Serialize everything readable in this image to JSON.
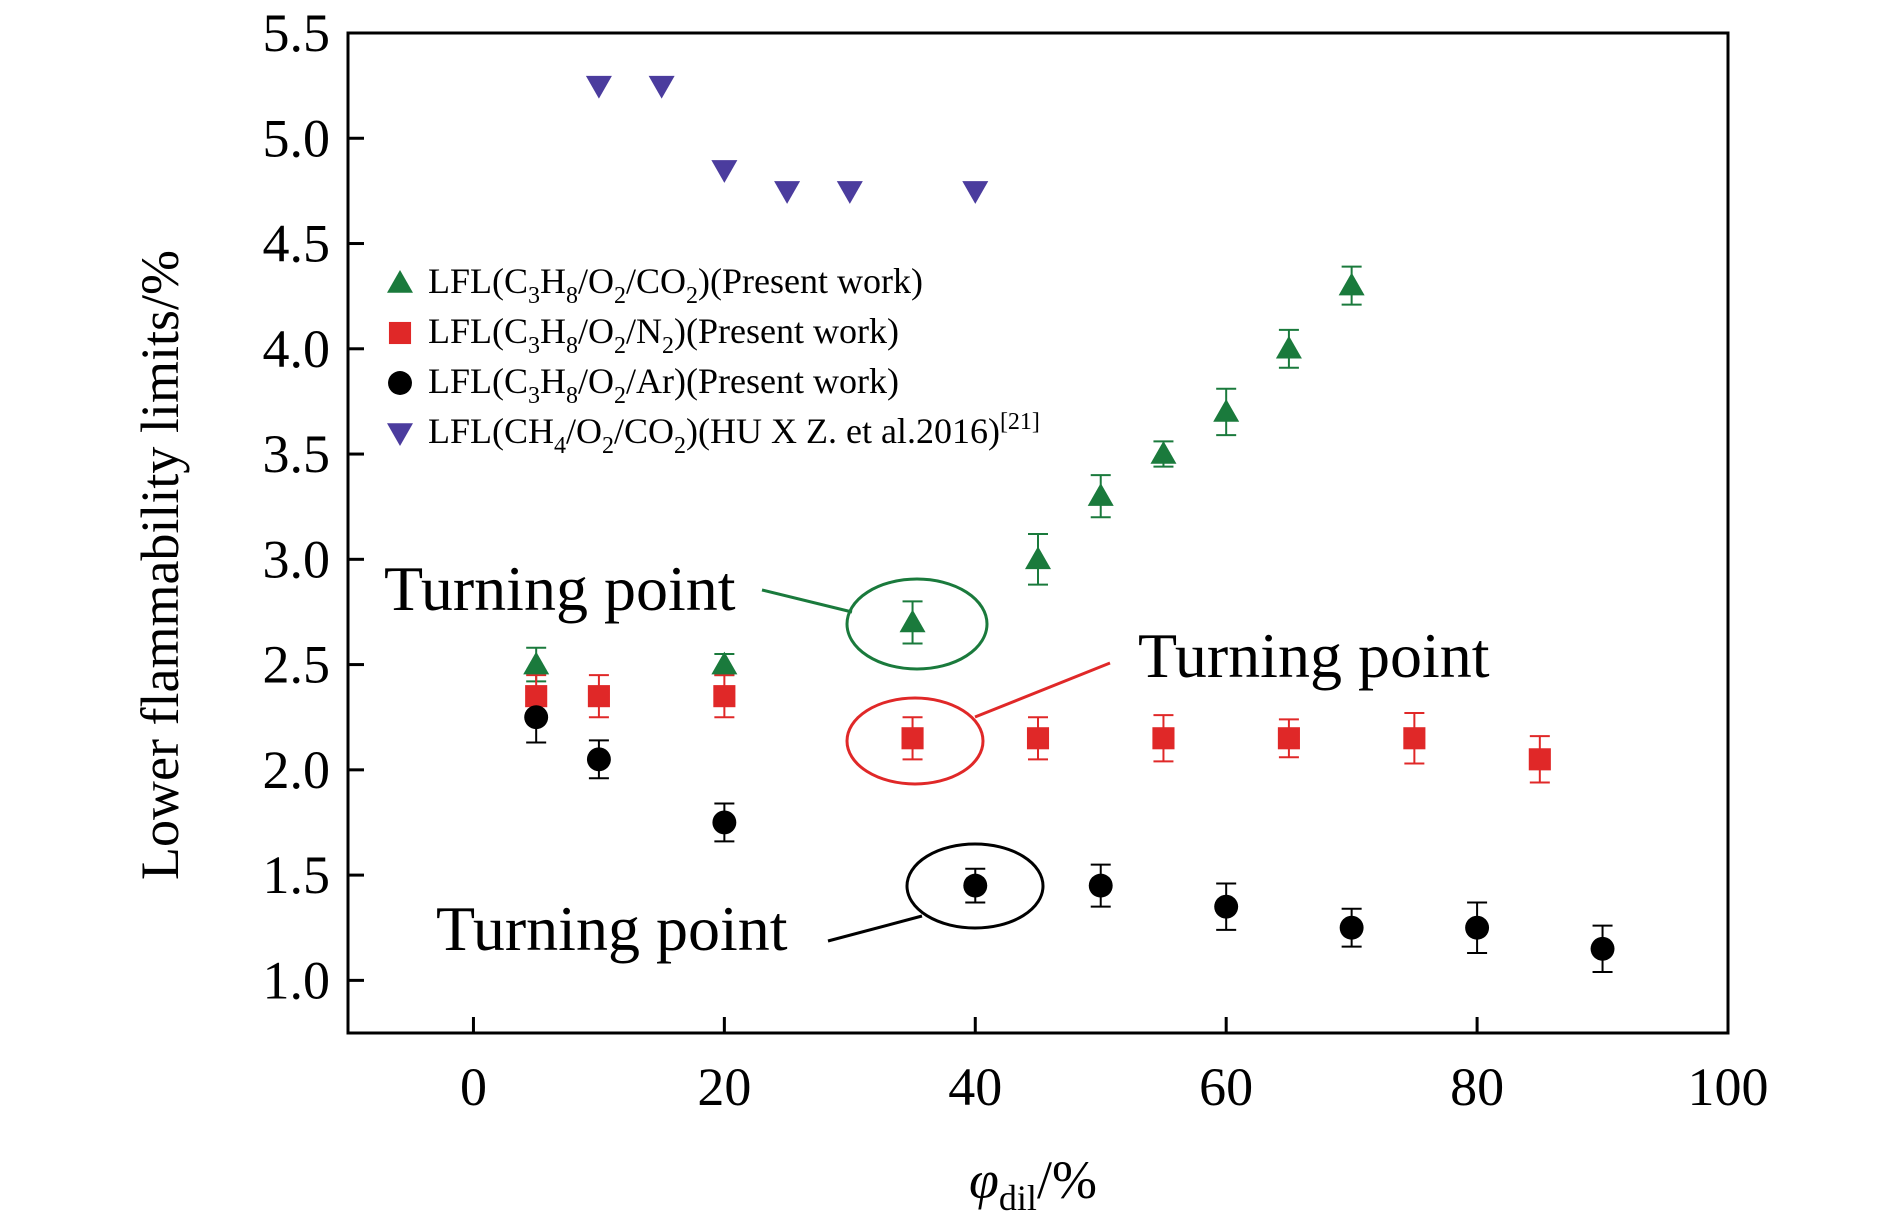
{
  "chart_data": {
    "type": "scatter",
    "xlabel": {
      "main": "φ",
      "sub": "dil",
      "tail": "/%"
    },
    "ylabel": "Lower flammability limits/%",
    "xlim": [
      -10,
      100
    ],
    "ylim": [
      0.75,
      5.5
    ],
    "xticks": [
      "0",
      "20",
      "40",
      "60",
      "80",
      "100"
    ],
    "yticks": [
      "1.0",
      "1.5",
      "2.0",
      "2.5",
      "3.0",
      "3.5",
      "4.0",
      "4.5",
      "5.0",
      "5.5"
    ],
    "legend_position": "upper-left",
    "series": [
      {
        "name": "LFL(C3H8/O2/CO2)(Present work)",
        "legend_parts": [
          {
            "t": "LFL(C"
          },
          {
            "t": "3",
            "s": "sub"
          },
          {
            "t": "H"
          },
          {
            "t": "8",
            "s": "sub"
          },
          {
            "t": "/O"
          },
          {
            "t": "2",
            "s": "sub"
          },
          {
            "t": "/CO"
          },
          {
            "t": "2",
            "s": "sub"
          },
          {
            "t": ")(Present work)"
          }
        ],
        "marker": "triangle-up",
        "color": "#1a7a3c",
        "x": [
          5,
          20,
          35,
          45,
          50,
          55,
          60,
          65,
          70
        ],
        "y": [
          2.5,
          2.5,
          2.7,
          3.0,
          3.3,
          3.5,
          3.7,
          4.0,
          4.3
        ],
        "err": [
          0.08,
          0.05,
          0.1,
          0.12,
          0.1,
          0.06,
          0.11,
          0.09,
          0.09
        ]
      },
      {
        "name": "LFL(C3H8/O2/N2)(Present work)",
        "legend_parts": [
          {
            "t": "LFL(C"
          },
          {
            "t": "3",
            "s": "sub"
          },
          {
            "t": "H"
          },
          {
            "t": "8",
            "s": "sub"
          },
          {
            "t": "/O"
          },
          {
            "t": "2",
            "s": "sub"
          },
          {
            "t": "/N"
          },
          {
            "t": "2",
            "s": "sub"
          },
          {
            "t": ")(Present work)"
          }
        ],
        "marker": "square",
        "color": "#e02828",
        "x": [
          5,
          10,
          20,
          35,
          45,
          55,
          65,
          75,
          85
        ],
        "y": [
          2.35,
          2.35,
          2.35,
          2.15,
          2.15,
          2.15,
          2.15,
          2.15,
          2.05
        ],
        "err": [
          0.1,
          0.1,
          0.1,
          0.1,
          0.1,
          0.11,
          0.09,
          0.12,
          0.11
        ]
      },
      {
        "name": "LFL(C3H8/O2/Ar)(Present work)",
        "legend_parts": [
          {
            "t": "LFL(C"
          },
          {
            "t": "3",
            "s": "sub"
          },
          {
            "t": "H"
          },
          {
            "t": "8",
            "s": "sub"
          },
          {
            "t": "/O"
          },
          {
            "t": "2",
            "s": "sub"
          },
          {
            "t": "/Ar)(Present work)"
          }
        ],
        "marker": "circle",
        "color": "#000000",
        "x": [
          5,
          10,
          20,
          40,
          50,
          60,
          70,
          80,
          90
        ],
        "y": [
          2.25,
          2.05,
          1.75,
          1.45,
          1.45,
          1.35,
          1.25,
          1.25,
          1.15
        ],
        "err": [
          0.12,
          0.09,
          0.09,
          0.08,
          0.1,
          0.11,
          0.09,
          0.12,
          0.11
        ]
      },
      {
        "name": "LFL(CH4/O2/CO2)(HU X Z. et al.2016)[21]",
        "legend_parts": [
          {
            "t": "LFL(CH"
          },
          {
            "t": "4",
            "s": "sub"
          },
          {
            "t": "/O"
          },
          {
            "t": "2",
            "s": "sub"
          },
          {
            "t": "/CO"
          },
          {
            "t": "2",
            "s": "sub"
          },
          {
            "t": ")(HU X Z. et al.2016)"
          },
          {
            "t": "[21]",
            "s": "sup"
          }
        ],
        "marker": "triangle-down",
        "color": "#4b3c9e",
        "x": [
          10,
          15,
          20,
          25,
          30,
          40
        ],
        "y": [
          5.25,
          5.25,
          4.85,
          4.75,
          4.75,
          4.75
        ],
        "err": []
      }
    ],
    "annotations": [
      {
        "text": "Turning point",
        "target_series": 0,
        "target_x": 35,
        "target_y": 2.7,
        "color": "#1a7a3c"
      },
      {
        "text": "Turning point",
        "target_series": 1,
        "target_x": 35,
        "target_y": 2.15,
        "color": "#e02828"
      },
      {
        "text": "Turning point",
        "target_series": 2,
        "target_x": 40,
        "target_y": 1.45,
        "color": "#000000"
      }
    ]
  }
}
